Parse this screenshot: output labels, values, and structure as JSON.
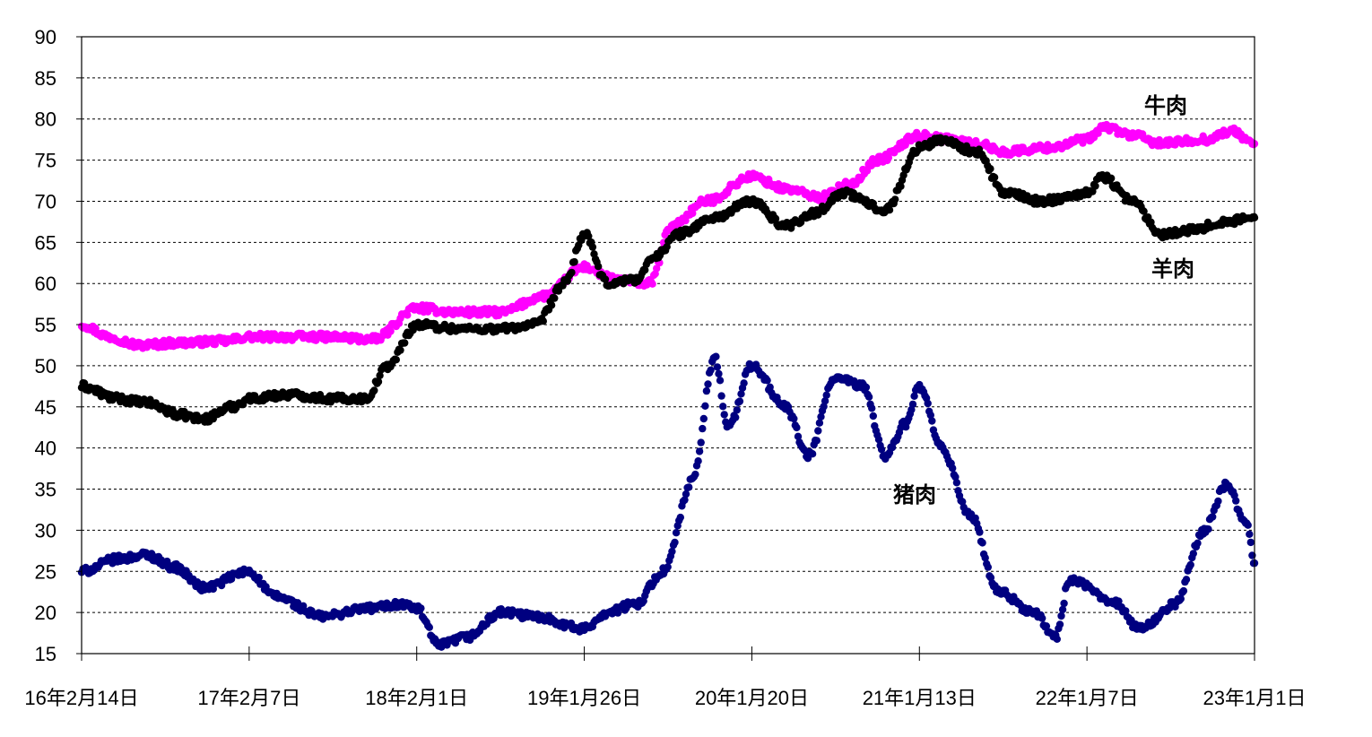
{
  "chart_data": {
    "type": "scatter",
    "title": "",
    "xlabel": "",
    "ylabel": "",
    "ylim": [
      15,
      90
    ],
    "yticks": [
      15,
      20,
      25,
      30,
      35,
      40,
      45,
      50,
      55,
      60,
      65,
      70,
      75,
      80,
      85,
      90
    ],
    "xlim": [
      "2016-02-14",
      "2023-01-01"
    ],
    "xticks": [
      "2016-02-14",
      "2017-02-07",
      "2018-02-01",
      "2019-01-26",
      "2020-01-20",
      "2021-01-13",
      "2022-01-07",
      "2023-01-01"
    ],
    "xtick_labels": [
      "16年2月14日",
      "17年2月7日",
      "18年2月1日",
      "19年1月26日",
      "20年1月20日",
      "21年1月13日",
      "22年1月7日",
      "23年1月1日"
    ],
    "grid": "horizontal dashed",
    "series": [
      {
        "name": "牛肉",
        "color": "#ff00ff",
        "points": [
          [
            "2016-02-14",
            55
          ],
          [
            "2016-04-15",
            53.5
          ],
          [
            "2016-06-15",
            52.5
          ],
          [
            "2016-09-15",
            52.8
          ],
          [
            "2016-12-15",
            53
          ],
          [
            "2017-02-07",
            53.5
          ],
          [
            "2017-05-01",
            53.5
          ],
          [
            "2017-08-01",
            53.5
          ],
          [
            "2017-11-01",
            53.2
          ],
          [
            "2018-02-01",
            57
          ],
          [
            "2018-05-01",
            56.5
          ],
          [
            "2018-08-01",
            56.5
          ],
          [
            "2018-11-01",
            58.5
          ],
          [
            "2019-01-26",
            62
          ],
          [
            "2019-04-01",
            60.5
          ],
          [
            "2019-06-15",
            60
          ],
          [
            "2019-08-01",
            67
          ],
          [
            "2019-10-15",
            70
          ],
          [
            "2020-01-20",
            73
          ],
          [
            "2020-04-01",
            71.5
          ],
          [
            "2020-06-15",
            70.5
          ],
          [
            "2020-08-15",
            72
          ],
          [
            "2020-10-15",
            75
          ],
          [
            "2021-01-13",
            78
          ],
          [
            "2021-03-15",
            77.5
          ],
          [
            "2021-05-15",
            77
          ],
          [
            "2021-07-15",
            76
          ],
          [
            "2021-10-15",
            76.5
          ],
          [
            "2022-01-07",
            77.5
          ],
          [
            "2022-02-15",
            79
          ],
          [
            "2022-04-15",
            78
          ],
          [
            "2022-06-15",
            77
          ],
          [
            "2022-09-15",
            77.5
          ],
          [
            "2022-11-15",
            78.5
          ],
          [
            "2023-01-01",
            77
          ]
        ]
      },
      {
        "name": "羊肉",
        "color": "#000000",
        "points": [
          [
            "2016-02-14",
            47.5
          ],
          [
            "2016-05-01",
            46
          ],
          [
            "2016-07-01",
            45.5
          ],
          [
            "2016-09-15",
            44
          ],
          [
            "2016-11-01",
            43.5
          ],
          [
            "2017-01-01",
            45
          ],
          [
            "2017-02-07",
            46
          ],
          [
            "2017-05-01",
            46.5
          ],
          [
            "2017-08-01",
            46
          ],
          [
            "2017-10-15",
            46
          ],
          [
            "2017-12-01",
            50
          ],
          [
            "2018-02-01",
            55
          ],
          [
            "2018-05-01",
            54.5
          ],
          [
            "2018-08-01",
            54.5
          ],
          [
            "2018-10-15",
            55
          ],
          [
            "2018-12-15",
            60
          ],
          [
            "2019-01-26",
            66
          ],
          [
            "2019-03-15",
            60
          ],
          [
            "2019-05-15",
            60.5
          ],
          [
            "2019-07-01",
            63.5
          ],
          [
            "2019-08-15",
            66
          ],
          [
            "2019-11-01",
            68
          ],
          [
            "2020-01-20",
            70
          ],
          [
            "2020-04-01",
            67
          ],
          [
            "2020-06-01",
            68.5
          ],
          [
            "2020-08-01",
            71
          ],
          [
            "2020-11-01",
            69
          ],
          [
            "2021-01-13",
            76.5
          ],
          [
            "2021-03-01",
            77.5
          ],
          [
            "2021-05-15",
            76
          ],
          [
            "2021-07-15",
            71
          ],
          [
            "2021-10-01",
            70
          ],
          [
            "2022-01-07",
            71
          ],
          [
            "2022-02-10",
            73
          ],
          [
            "2022-04-15",
            70
          ],
          [
            "2022-06-15",
            66
          ],
          [
            "2022-08-15",
            66.5
          ],
          [
            "2022-11-01",
            67.5
          ],
          [
            "2023-01-01",
            68
          ]
        ]
      },
      {
        "name": "猪肉",
        "color": "#000080",
        "points": [
          [
            "2016-02-14",
            25
          ],
          [
            "2016-05-01",
            26.5
          ],
          [
            "2016-07-01",
            27
          ],
          [
            "2016-09-01",
            25.5
          ],
          [
            "2016-11-01",
            23
          ],
          [
            "2017-02-07",
            25
          ],
          [
            "2017-04-01",
            22
          ],
          [
            "2017-07-15",
            19.5
          ],
          [
            "2017-10-15",
            20.5
          ],
          [
            "2018-01-01",
            21
          ],
          [
            "2018-02-01",
            20.5
          ],
          [
            "2018-03-20",
            16
          ],
          [
            "2018-05-20",
            17
          ],
          [
            "2018-08-01",
            20
          ],
          [
            "2018-10-15",
            19.5
          ],
          [
            "2019-01-26",
            18
          ],
          [
            "2019-03-15",
            20
          ],
          [
            "2019-05-15",
            21
          ],
          [
            "2019-07-15",
            25
          ],
          [
            "2019-09-15",
            36
          ],
          [
            "2019-11-01",
            51
          ],
          [
            "2019-12-01",
            42.5
          ],
          [
            "2020-01-20",
            50
          ],
          [
            "2020-04-01",
            45
          ],
          [
            "2020-05-20",
            39
          ],
          [
            "2020-07-15",
            48.5
          ],
          [
            "2020-09-15",
            47.5
          ],
          [
            "2020-11-01",
            39
          ],
          [
            "2020-12-15",
            43
          ],
          [
            "2021-01-13",
            47.5
          ],
          [
            "2021-03-01",
            40
          ],
          [
            "2021-05-01",
            32
          ],
          [
            "2021-07-01",
            22.5
          ],
          [
            "2021-09-15",
            20
          ],
          [
            "2021-11-01",
            17
          ],
          [
            "2021-12-01",
            24
          ],
          [
            "2022-03-01",
            21.5
          ],
          [
            "2022-05-01",
            18
          ],
          [
            "2022-07-15",
            21
          ],
          [
            "2022-09-15",
            30
          ],
          [
            "2022-11-01",
            35.5
          ],
          [
            "2022-12-15",
            31
          ],
          [
            "2023-01-01",
            26
          ]
        ]
      }
    ],
    "annotations": [
      {
        "text": "牛肉",
        "series": "牛肉"
      },
      {
        "text": "羊肉",
        "series": "羊肉"
      },
      {
        "text": "猪肉",
        "series": "猪肉"
      }
    ]
  }
}
